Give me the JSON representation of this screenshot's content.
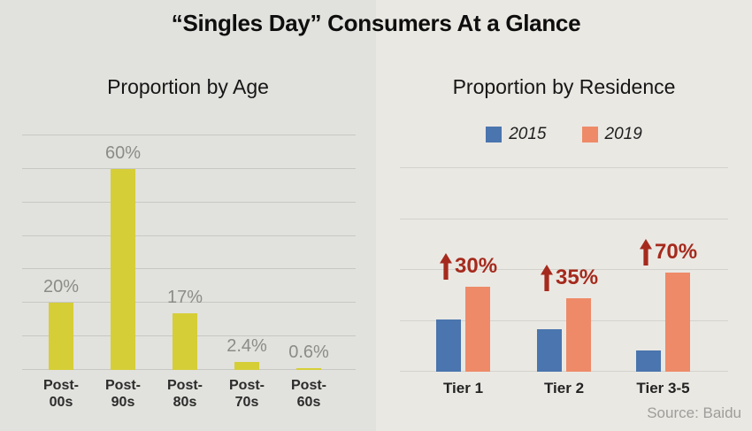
{
  "title": "“Singles Day” Consumers At a Glance",
  "source_note": "Source: Baidu",
  "colors": {
    "left_panel_bg": "#e1e1dd",
    "right_panel_bg": "#eae8e3",
    "bar_yellow": "#d5ce37",
    "bar_blue": "#4a75ae",
    "bar_orange": "#ee8a68",
    "annotation_red": "#a52a1d",
    "value_label_gray": "#8b8b89"
  },
  "chart_data": [
    {
      "type": "bar",
      "panel": "left",
      "title": "Proportion by Age",
      "categories": [
        "Post-00s",
        "Post-90s",
        "Post-80s",
        "Post-70s",
        "Post-60s"
      ],
      "category_label_lines": [
        [
          "Post-",
          "00s"
        ],
        [
          "Post-",
          "90s"
        ],
        [
          "Post-",
          "80s"
        ],
        [
          "Post-",
          "70s"
        ],
        [
          "Post-",
          "60s"
        ]
      ],
      "values": [
        20,
        60,
        17,
        2.4,
        0.6
      ],
      "value_labels": [
        "20%",
        "60%",
        "17%",
        "2.4%",
        "0.6%"
      ],
      "xlabel": "",
      "ylabel": "",
      "ylim": [
        0,
        70
      ],
      "grid_step": 10,
      "grid": true,
      "y_tick_labels_visible": false,
      "bar_color": "#d5ce37"
    },
    {
      "type": "bar",
      "panel": "right",
      "title": "Proportion by Residence",
      "categories": [
        "Tier 1",
        "Tier 2",
        "Tier 3-5"
      ],
      "series": [
        {
          "name": "2015",
          "color": "#4a75ae",
          "values": [
            10.3,
            8.4,
            4.2
          ]
        },
        {
          "name": "2019",
          "color": "#ee8a68",
          "values": [
            16.7,
            14.4,
            19.5
          ]
        }
      ],
      "values_note": "y-axis has no tick labels; series values estimated in gridline units (1 gridline interval = 10)",
      "xlabel": "",
      "ylabel": "",
      "ylim": [
        0,
        40
      ],
      "grid_step": 10,
      "grid": true,
      "legend_position": "top",
      "annotations": [
        {
          "category": "Tier 1",
          "icon": "up-arrow",
          "text": "30%"
        },
        {
          "category": "Tier 2",
          "icon": "up-arrow",
          "text": "35%"
        },
        {
          "category": "Tier 3-5",
          "icon": "up-arrow",
          "text": "70%"
        }
      ]
    }
  ]
}
